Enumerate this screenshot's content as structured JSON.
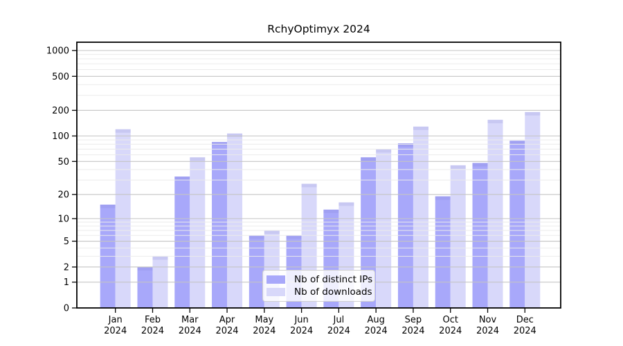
{
  "title": "RchyOptimyx 2024",
  "legend": {
    "items": [
      {
        "label": "Nb of distinct IPs",
        "color": "#a8a8fa"
      },
      {
        "label": "Nb of downloads",
        "color": "#d8d8fa"
      }
    ]
  },
  "chart_data": {
    "type": "bar",
    "title": "RchyOptimyx 2024",
    "categories": [
      "Jan 2024",
      "Feb 2024",
      "Mar 2024",
      "Apr 2024",
      "May 2024",
      "Jun 2024",
      "Jul 2024",
      "Aug 2024",
      "Sep 2024",
      "Oct 2024",
      "Nov 2024",
      "Dec 2024"
    ],
    "month_labels": [
      "Jan",
      "Feb",
      "Mar",
      "Apr",
      "May",
      "Jun",
      "Jul",
      "Aug",
      "Sep",
      "Oct",
      "Nov",
      "Dec"
    ],
    "year_label": "2024",
    "series": [
      {
        "name": "Nb of distinct IPs",
        "color": "#a8a8fa",
        "values": [
          15,
          2,
          33,
          85,
          6,
          6,
          13,
          56,
          82,
          19,
          48,
          88
        ]
      },
      {
        "name": "Nb of downloads",
        "color": "#d8d8fa",
        "values": [
          120,
          3,
          56,
          107,
          7,
          27,
          16,
          70,
          129,
          45,
          155,
          191
        ]
      }
    ],
    "y_axis": {
      "scale": "log10(value+1)",
      "ticks": [
        0,
        1,
        2,
        5,
        10,
        20,
        50,
        100,
        200,
        500,
        1000
      ],
      "minor_ticks": [
        3,
        4,
        6,
        7,
        8,
        9,
        30,
        40,
        60,
        70,
        80,
        90,
        300,
        400,
        600,
        700,
        800,
        900
      ],
      "range": [
        0,
        1000
      ]
    },
    "grid": {
      "major": true,
      "minor": true,
      "drawn_above_bars": true
    },
    "legend_position": "lower-center",
    "colors": {
      "axis": "#000000",
      "grid_major": "#c4c4c4",
      "grid_minor": "#ebebeb"
    }
  }
}
